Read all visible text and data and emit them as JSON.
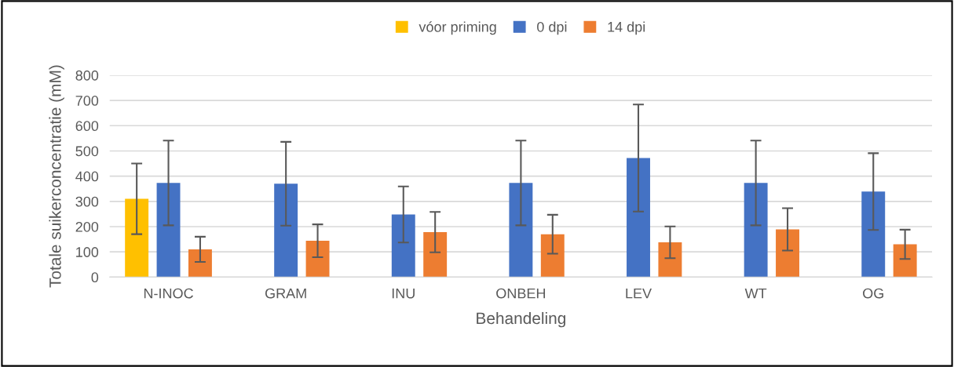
{
  "chart_data": {
    "type": "bar",
    "xlabel": "Behandeling",
    "ylabel": "Totale suikerconcentratie (mM)",
    "categories": [
      "N-INOC",
      "GRAM",
      "INU",
      "ONBEH",
      "LEV",
      "WT",
      "OG"
    ],
    "series": [
      {
        "name": "vóor priming",
        "color": "#ffc000",
        "values": [
          310,
          null,
          null,
          null,
          null,
          null,
          null
        ],
        "errors": [
          140,
          null,
          null,
          null,
          null,
          null,
          null
        ]
      },
      {
        "name": "0 dpi",
        "color": "#4472c4",
        "values": [
          373,
          370,
          248,
          373,
          472,
          373,
          339
        ],
        "errors": [
          168,
          166,
          111,
          168,
          212,
          168,
          152
        ]
      },
      {
        "name": "14 dpi",
        "color": "#ed7d31",
        "values": [
          110,
          144,
          178,
          170,
          138,
          189,
          130
        ],
        "errors": [
          50,
          65,
          80,
          77,
          63,
          84,
          58
        ]
      }
    ],
    "ylim": [
      0,
      800
    ],
    "yticks": [
      0,
      100,
      200,
      300,
      400,
      500,
      600,
      700,
      800
    ],
    "grid": "y",
    "legend": "top"
  }
}
